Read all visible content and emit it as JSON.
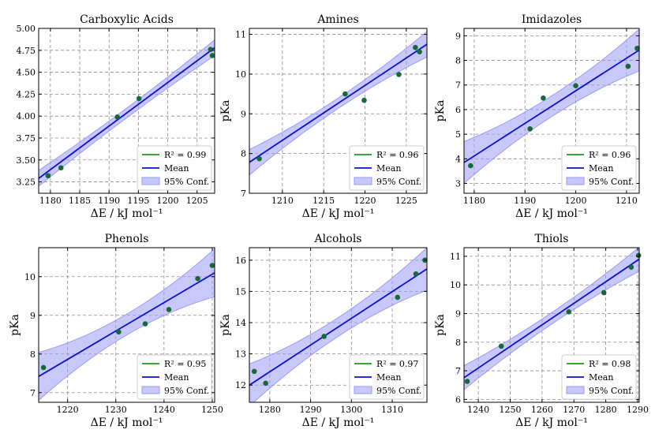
{
  "colors": {
    "mean_line": "#0a10c8",
    "conf_band": "#9a9af5",
    "points": "#17693a",
    "r2_line": "#1a9a1a",
    "grid": "#8a8a8a"
  },
  "chart_data": [
    {
      "type": "scatter",
      "title": "Carboxylic Acids",
      "xlabel": "ΔE / kJ mol⁻¹",
      "ylabel": "",
      "xlim": [
        1178,
        1208
      ],
      "ylim": [
        3.12,
        5.0
      ],
      "xticks": [
        1180,
        1185,
        1190,
        1195,
        1200,
        1205
      ],
      "yticks": [
        3.25,
        3.5,
        3.75,
        4.0,
        4.25,
        4.5,
        4.75,
        5.0
      ],
      "yticklabels": [
        "3.25",
        "3.50",
        "3.75",
        "4.00",
        "4.25",
        "4.50",
        "4.75",
        "5.00"
      ],
      "points": [
        [
          1179.6,
          3.32
        ],
        [
          1181.8,
          3.41
        ],
        [
          1191.4,
          3.99
        ],
        [
          1195.1,
          4.2
        ],
        [
          1207.3,
          4.76
        ],
        [
          1207.6,
          4.69
        ]
      ],
      "fit": {
        "x0": 1178,
        "y0": 3.29,
        "x1": 1208,
        "y1": 4.78
      },
      "band_half_width": {
        "edge": 0.09,
        "center": 0.055
      },
      "legend": {
        "r2": "R² = 0.99",
        "mean": "Mean",
        "conf": "95% Conf."
      }
    },
    {
      "type": "scatter",
      "title": "Amines",
      "xlabel": "ΔE / kJ mol⁻¹",
      "ylabel": "pKa",
      "xlim": [
        1206,
        1227.5
      ],
      "ylim": [
        7.0,
        11.15
      ],
      "xticks": [
        1210,
        1215,
        1220,
        1225
      ],
      "yticks": [
        7,
        8,
        9,
        10,
        11
      ],
      "yticklabels": [
        "7",
        "8",
        "9",
        "10",
        "11"
      ],
      "points": [
        [
          1207.2,
          7.87
        ],
        [
          1217.6,
          9.5
        ],
        [
          1219.9,
          9.34
        ],
        [
          1224.1,
          9.99
        ],
        [
          1226.1,
          10.67
        ],
        [
          1226.6,
          10.56
        ]
      ],
      "fit": {
        "x0": 1206,
        "y0": 7.78,
        "x1": 1227.5,
        "y1": 10.75
      },
      "band_half_width": {
        "edge": 0.32,
        "center": 0.13
      },
      "legend": {
        "r2": "R² = 0.96",
        "mean": "Mean",
        "conf": "95% Conf."
      }
    },
    {
      "type": "scatter",
      "title": "Imidazoles",
      "xlabel": "ΔE / kJ mol⁻¹",
      "ylabel": "pKa",
      "xlim": [
        1178,
        1212.5
      ],
      "ylim": [
        2.6,
        9.3
      ],
      "xticks": [
        1180,
        1190,
        1200,
        1210
      ],
      "yticks": [
        3,
        4,
        5,
        6,
        7,
        8,
        9
      ],
      "yticklabels": [
        "3",
        "4",
        "5",
        "6",
        "7",
        "8",
        "9"
      ],
      "points": [
        [
          1179.3,
          3.72
        ],
        [
          1191.0,
          5.22
        ],
        [
          1193.6,
          6.47
        ],
        [
          1200.0,
          6.97
        ],
        [
          1210.3,
          7.76
        ],
        [
          1212.1,
          8.49
        ]
      ],
      "fit": {
        "x0": 1178,
        "y0": 3.85,
        "x1": 1212.5,
        "y1": 8.42
      },
      "band_half_width": {
        "edge": 0.85,
        "center": 0.42
      },
      "legend": {
        "r2": "R² = 0.96",
        "mean": "Mean",
        "conf": "95% Conf."
      }
    },
    {
      "type": "scatter",
      "title": "Phenols",
      "xlabel": "ΔE / kJ mol⁻¹",
      "ylabel": "pKa",
      "xlim": [
        1214,
        1250.5
      ],
      "ylim": [
        6.75,
        10.75
      ],
      "xticks": [
        1220,
        1230,
        1240,
        1250
      ],
      "yticks": [
        7,
        8,
        9,
        10
      ],
      "yticklabels": [
        "7",
        "8",
        "9",
        "10"
      ],
      "points": [
        [
          1215.0,
          7.65
        ],
        [
          1230.6,
          8.57
        ],
        [
          1236.1,
          8.78
        ],
        [
          1241.0,
          9.15
        ],
        [
          1247.0,
          9.95
        ],
        [
          1250.0,
          10.29
        ]
      ],
      "fit": {
        "x0": 1214,
        "y0": 7.42,
        "x1": 1250.5,
        "y1": 10.1
      },
      "band_half_width": {
        "edge": 0.62,
        "center": 0.27
      },
      "legend": {
        "r2": "R² = 0.95",
        "mean": "Mean",
        "conf": "95% Conf."
      }
    },
    {
      "type": "scatter",
      "title": "Alcohols",
      "xlabel": "ΔE / kJ mol⁻¹",
      "ylabel": "pKa",
      "xlim": [
        1275,
        1318.5
      ],
      "ylim": [
        11.45,
        16.4
      ],
      "xticks": [
        1280,
        1290,
        1300,
        1310
      ],
      "yticks": [
        12,
        13,
        14,
        15,
        16
      ],
      "yticklabels": [
        "12",
        "13",
        "14",
        "15",
        "16"
      ],
      "points": [
        [
          1276.2,
          12.44
        ],
        [
          1279.0,
          12.06
        ],
        [
          1293.3,
          13.56
        ],
        [
          1311.3,
          14.81
        ],
        [
          1315.8,
          15.56
        ],
        [
          1318.0,
          16.0
        ]
      ],
      "fit": {
        "x0": 1275,
        "y0": 12.0,
        "x1": 1318.5,
        "y1": 15.72
      },
      "band_half_width": {
        "edge": 0.68,
        "center": 0.3
      },
      "legend": {
        "r2": "R² = 0.97",
        "mean": "Mean",
        "conf": "95% Conf."
      }
    },
    {
      "type": "scatter",
      "title": "Thiols",
      "xlabel": "ΔE / kJ mol⁻¹",
      "ylabel": "pKa",
      "xlim": [
        1235.5,
        1290.5
      ],
      "ylim": [
        5.9,
        11.3
      ],
      "xticks": [
        1240,
        1250,
        1260,
        1270,
        1280,
        1290
      ],
      "yticks": [
        6,
        7,
        8,
        9,
        10,
        11
      ],
      "yticklabels": [
        "6",
        "7",
        "8",
        "9",
        "10",
        "11"
      ],
      "points": [
        [
          1236.5,
          6.63
        ],
        [
          1247.2,
          7.86
        ],
        [
          1268.4,
          9.06
        ],
        [
          1279.4,
          9.73
        ],
        [
          1288.0,
          10.62
        ],
        [
          1290.3,
          11.03
        ]
      ],
      "fit": {
        "x0": 1235.5,
        "y0": 6.76,
        "x1": 1290.5,
        "y1": 10.9
      },
      "band_half_width": {
        "edge": 0.42,
        "center": 0.2
      },
      "legend": {
        "r2": "R² = 0.98",
        "mean": "Mean",
        "conf": "95% Conf."
      }
    }
  ]
}
